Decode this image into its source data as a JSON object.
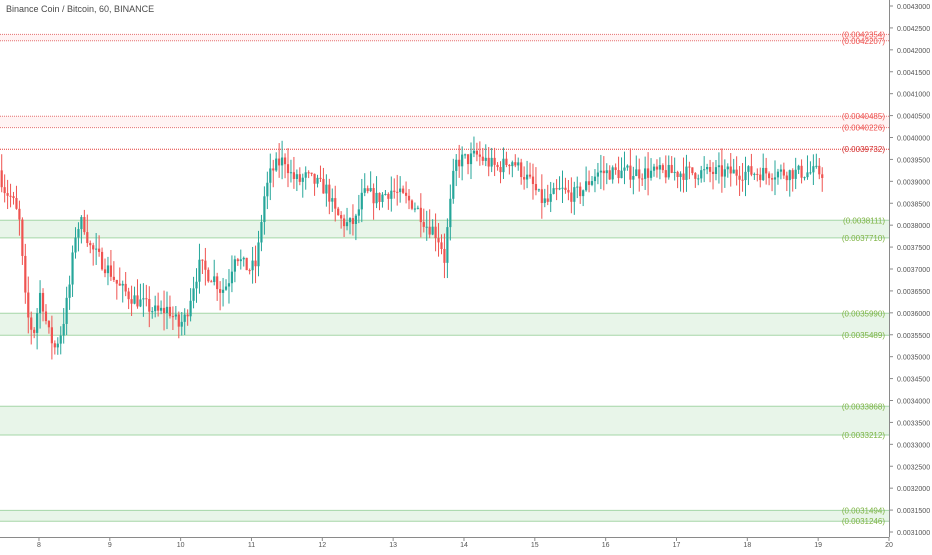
{
  "header": {
    "title": "Binance Coin / Bitcoin, 60, BINANCE"
  },
  "chart_data": {
    "type": "candlestick",
    "title": "Binance Coin / Bitcoin, 60, BINANCE",
    "ylim": [
      0.0031,
      0.0043
    ],
    "y_ticks": [
      "0.0043000",
      "0.0042500",
      "0.0042000",
      "0.0041500",
      "0.0041000",
      "0.0040500",
      "0.0040000",
      "0.0039500",
      "0.0039000",
      "0.0038500",
      "0.0038000",
      "0.0037500",
      "0.0037000",
      "0.0036500",
      "0.0036000",
      "0.0035500",
      "0.0035000",
      "0.0034500",
      "0.0034000",
      "0.0033500",
      "0.0033000",
      "0.0032500",
      "0.0032000",
      "0.0031500",
      "0.0031000"
    ],
    "x_ticks": [
      "8",
      "9",
      "10",
      "11",
      "12",
      "13",
      "14",
      "15",
      "16",
      "17",
      "18",
      "19",
      "20"
    ],
    "x_range": [
      7.45,
      20.0
    ],
    "colors": {
      "up": "#26a69a",
      "down": "#ef5350",
      "resistance": "#e57373",
      "support": "#8bc34a",
      "zone_fill": "#e8f5e9",
      "res_fill": "#fff3f3"
    },
    "resistance_zones": [
      [
        0.0042207,
        0.0042354
      ],
      [
        0.0040226,
        0.0040485
      ]
    ],
    "resistance_line": 0.0039732,
    "support_zones": [
      [
        0.003771,
        0.0038111
      ],
      [
        0.0035489,
        0.003599
      ],
      [
        0.0033212,
        0.0033868
      ],
      [
        0.0031246,
        0.0031494
      ]
    ],
    "level_labels": [
      {
        "text": "(0.0042354)",
        "value": 0.0042354,
        "kind": "res"
      },
      {
        "text": "(0.0042207)",
        "value": 0.0042207,
        "kind": "res"
      },
      {
        "text": "(0.0040485)",
        "value": 0.0040485,
        "kind": "res"
      },
      {
        "text": "(0.0040226)",
        "value": 0.0040226,
        "kind": "res"
      },
      {
        "text": "(0.0039732)",
        "value": 0.0039732,
        "kind": "res-strong"
      },
      {
        "text": "(0.0038111)",
        "value": 0.0038111,
        "kind": "sup"
      },
      {
        "text": "(0.0037710)",
        "value": 0.003771,
        "kind": "sup"
      },
      {
        "text": "(0.0035990)",
        "value": 0.003599,
        "kind": "sup"
      },
      {
        "text": "(0.0035489)",
        "value": 0.0035489,
        "kind": "sup"
      },
      {
        "text": "(0.0033868)",
        "value": 0.0033868,
        "kind": "sup"
      },
      {
        "text": "(0.0033212)",
        "value": 0.0033212,
        "kind": "sup"
      },
      {
        "text": "(0.0031494)",
        "value": 0.0031494,
        "kind": "sup"
      },
      {
        "text": "(0.0031246)",
        "value": 0.0031246,
        "kind": "sup"
      }
    ],
    "price_path": [
      [
        7.45,
        0.00393
      ],
      [
        7.55,
        0.00388
      ],
      [
        7.65,
        0.00386
      ],
      [
        7.75,
        0.00381
      ],
      [
        7.85,
        0.0036
      ],
      [
        7.95,
        0.00355
      ],
      [
        8.05,
        0.00365
      ],
      [
        8.15,
        0.00356
      ],
      [
        8.25,
        0.00352
      ],
      [
        8.35,
        0.00356
      ],
      [
        8.45,
        0.00365
      ],
      [
        8.55,
        0.00379
      ],
      [
        8.65,
        0.00381
      ],
      [
        8.75,
        0.00375
      ],
      [
        8.85,
        0.00373
      ],
      [
        8.95,
        0.00371
      ],
      [
        9.05,
        0.00369
      ],
      [
        9.15,
        0.00366
      ],
      [
        9.3,
        0.00364
      ],
      [
        9.5,
        0.00362
      ],
      [
        9.7,
        0.0036
      ],
      [
        9.85,
        0.00361
      ],
      [
        10.0,
        0.00357
      ],
      [
        10.1,
        0.00359
      ],
      [
        10.2,
        0.00366
      ],
      [
        10.3,
        0.00371
      ],
      [
        10.4,
        0.00369
      ],
      [
        10.5,
        0.00368
      ],
      [
        10.6,
        0.00365
      ],
      [
        10.7,
        0.00367
      ],
      [
        10.8,
        0.00374
      ],
      [
        10.9,
        0.00371
      ],
      [
        11.0,
        0.0037
      ],
      [
        11.1,
        0.00371
      ],
      [
        11.2,
        0.00386
      ],
      [
        11.3,
        0.00392
      ],
      [
        11.4,
        0.00394
      ],
      [
        11.5,
        0.00395
      ],
      [
        11.6,
        0.00391
      ],
      [
        11.7,
        0.0039
      ],
      [
        11.8,
        0.00391
      ],
      [
        11.9,
        0.0039
      ],
      [
        12.0,
        0.00389
      ],
      [
        12.1,
        0.00388
      ],
      [
        12.2,
        0.00383
      ],
      [
        12.3,
        0.00381
      ],
      [
        12.4,
        0.0038
      ],
      [
        12.5,
        0.00381
      ],
      [
        12.6,
        0.00387
      ],
      [
        12.7,
        0.00387
      ],
      [
        12.8,
        0.00386
      ],
      [
        12.9,
        0.00387
      ],
      [
        13.0,
        0.00388
      ],
      [
        13.1,
        0.00387
      ],
      [
        13.2,
        0.00386
      ],
      [
        13.3,
        0.00385
      ],
      [
        13.4,
        0.00383
      ],
      [
        13.5,
        0.0038
      ],
      [
        13.6,
        0.00379
      ],
      [
        13.7,
        0.00376
      ],
      [
        13.75,
        0.00372
      ],
      [
        13.8,
        0.0038
      ],
      [
        13.9,
        0.00394
      ],
      [
        14.0,
        0.00395
      ],
      [
        14.1,
        0.00395
      ],
      [
        14.2,
        0.00396
      ],
      [
        14.3,
        0.00395
      ],
      [
        14.4,
        0.00394
      ],
      [
        14.5,
        0.00393
      ],
      [
        14.6,
        0.00394
      ],
      [
        14.7,
        0.00395
      ],
      [
        14.8,
        0.00393
      ],
      [
        14.9,
        0.00391
      ],
      [
        15.0,
        0.00389
      ],
      [
        15.1,
        0.00386
      ],
      [
        15.2,
        0.00385
      ],
      [
        15.3,
        0.00387
      ],
      [
        15.4,
        0.00388
      ],
      [
        15.5,
        0.00387
      ],
      [
        15.6,
        0.00387
      ],
      [
        15.7,
        0.00388
      ],
      [
        15.8,
        0.0039
      ],
      [
        15.9,
        0.00392
      ]
    ]
  }
}
